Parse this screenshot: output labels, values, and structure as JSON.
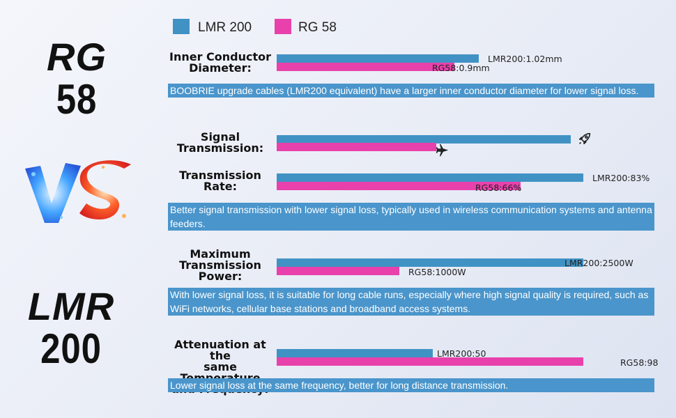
{
  "left": {
    "top_title": {
      "line1": "RG",
      "line2": "58"
    },
    "vs_text": "VS",
    "bottom_title": {
      "line1": "LMR",
      "line2": "200"
    }
  },
  "legend": [
    {
      "label": "LMR 200",
      "color": "#4192c4"
    },
    {
      "label": "RG 58",
      "color": "#e841ac"
    }
  ],
  "chart_data": {
    "type": "bar",
    "orientation": "horizontal",
    "series": [
      {
        "name": "LMR 200",
        "color": "#4192c4"
      },
      {
        "name": "RG 58",
        "color": "#e841ac"
      }
    ],
    "metrics": [
      {
        "label": "Inner Conductor Diameter:",
        "lines": [
          "Inner Conductor",
          "Diameter:"
        ],
        "lmr": {
          "value": 1.02,
          "label": "LMR200:1.02mm"
        },
        "rg": {
          "value": 0.9,
          "label": "RG58:0.9mm"
        },
        "scale_max": 1.55,
        "note": "BOOBRIE upgrade cables (LMR200 equivalent) have a larger inner conductor diameter for lower signal loss."
      },
      {
        "label": "Signal Transmission:",
        "lines": [
          "Signal",
          "Transmission:"
        ],
        "lmr": {
          "value": 96,
          "icon": "rocket-icon"
        },
        "rg": {
          "value": 52,
          "icon": "airplane-icon"
        },
        "scale_max": 100
      },
      {
        "label": "Transmission Rate:",
        "lines": [
          "Transmission",
          "Rate:"
        ],
        "lmr": {
          "value": 83,
          "label": "LMR200:83%"
        },
        "rg": {
          "value": 66,
          "label": "RG58:66%"
        },
        "scale_max": 83,
        "note": "Better signal transmission with lower signal loss, typically used in wireless communication systems and antenna feeders."
      },
      {
        "label": "Maximum Transmission Power:",
        "lines": [
          "Maximum",
          "Transmission",
          "Power:"
        ],
        "lmr": {
          "value": 2500,
          "label": "LMR200:2500W"
        },
        "rg": {
          "value": 1000,
          "label": "RG58:1000W"
        },
        "scale_max": 2500,
        "note": "With lower signal loss, it is suitable for long cable runs, especially where high signal quality is required, such as WiFi networks, cellular base stations and broadband access systems."
      },
      {
        "label": "Attenuation at the same Temperature and Frequency:",
        "lines": [
          "Attenuation at the",
          "same Temperature",
          "and Frequency:"
        ],
        "lmr": {
          "value": 50,
          "label": "LMR200:50"
        },
        "rg": {
          "value": 98,
          "label": "RG58:98"
        },
        "scale_max": 98,
        "note": "Lower signal loss at the same frequency, better for long distance transmission."
      }
    ]
  }
}
